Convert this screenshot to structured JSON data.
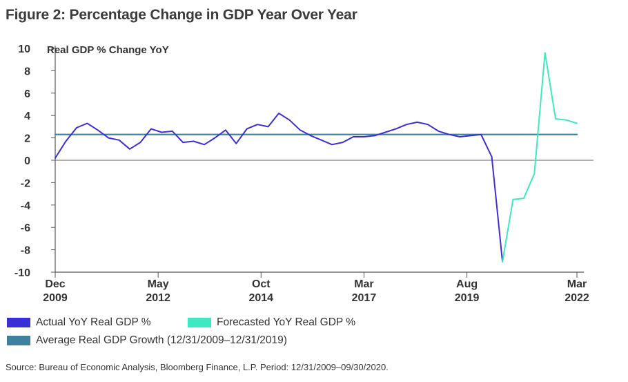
{
  "title": "Figure 2: Percentage Change in GDP Year Over Year",
  "source": "Source: Bureau of Economic Analysis, Bloomberg Finance, L.P. Period: 12/31/2009–09/30/2020.",
  "colors": {
    "actual": "#3a2fd6",
    "forecast": "#3ee8c0",
    "average": "#3f7f9f",
    "axis": "#555555",
    "zero": "#666666"
  },
  "legend": {
    "actual": "Actual YoY Real GDP %",
    "forecast": "Forecasted YoY Real GDP %",
    "average": "Average Real GDP Growth (12/31/2009–12/31/2019)"
  },
  "chart_data": {
    "type": "line",
    "title": "Figure 2: Percentage Change in GDP Year Over Year",
    "ylabel": "Real GDP % Change YoY",
    "ylim": [
      -10,
      10
    ],
    "yticks": [
      10,
      8,
      6,
      4,
      2,
      0,
      -2,
      -4,
      -6,
      -8,
      -10
    ],
    "xlim": [
      "2009-12",
      "2022-03"
    ],
    "xticks": [
      {
        "date": "2009-12",
        "line1": "Dec",
        "line2": "2009"
      },
      {
        "date": "2012-05",
        "line1": "May",
        "line2": "2012"
      },
      {
        "date": "2014-10",
        "line1": "Oct",
        "line2": "2014"
      },
      {
        "date": "2017-03",
        "line1": "Mar",
        "line2": "2017"
      },
      {
        "date": "2019-08",
        "line1": "Aug",
        "line2": "2019"
      },
      {
        "date": "2022-03",
        "line1": "Mar",
        "line2": "2022"
      }
    ],
    "series": [
      {
        "name": "Actual YoY Real GDP %",
        "x": [
          "2009-12",
          "2010-03",
          "2010-06",
          "2010-09",
          "2010-12",
          "2011-03",
          "2011-06",
          "2011-09",
          "2011-12",
          "2012-03",
          "2012-06",
          "2012-09",
          "2012-12",
          "2013-03",
          "2013-06",
          "2013-09",
          "2013-12",
          "2014-03",
          "2014-06",
          "2014-09",
          "2014-12",
          "2015-03",
          "2015-06",
          "2015-09",
          "2015-12",
          "2016-03",
          "2016-06",
          "2016-09",
          "2016-12",
          "2017-03",
          "2017-06",
          "2017-09",
          "2017-12",
          "2018-03",
          "2018-06",
          "2018-09",
          "2018-12",
          "2019-03",
          "2019-06",
          "2019-09",
          "2019-12",
          "2020-03",
          "2020-06"
        ],
        "values": [
          0.2,
          1.7,
          2.9,
          3.3,
          2.7,
          2.0,
          1.8,
          1.0,
          1.6,
          2.8,
          2.5,
          2.6,
          1.6,
          1.7,
          1.4,
          2.0,
          2.7,
          1.5,
          2.8,
          3.2,
          3.0,
          4.2,
          3.6,
          2.7,
          2.2,
          1.8,
          1.4,
          1.6,
          2.1,
          2.1,
          2.2,
          2.5,
          2.8,
          3.2,
          3.4,
          3.2,
          2.6,
          2.3,
          2.1,
          2.2,
          2.3,
          0.3,
          -9.0
        ]
      },
      {
        "name": "Forecasted YoY Real GDP %",
        "x": [
          "2020-06",
          "2020-09",
          "2020-12",
          "2021-03",
          "2021-06",
          "2021-09",
          "2021-12",
          "2022-03"
        ],
        "values": [
          -9.1,
          -3.5,
          -3.4,
          -1.2,
          9.6,
          3.7,
          3.6,
          3.3
        ]
      },
      {
        "name": "Average Real GDP Growth (12/31/2009–12/31/2019)",
        "x": [
          "2009-12",
          "2022-03"
        ],
        "values": [
          2.3,
          2.3
        ]
      }
    ]
  }
}
